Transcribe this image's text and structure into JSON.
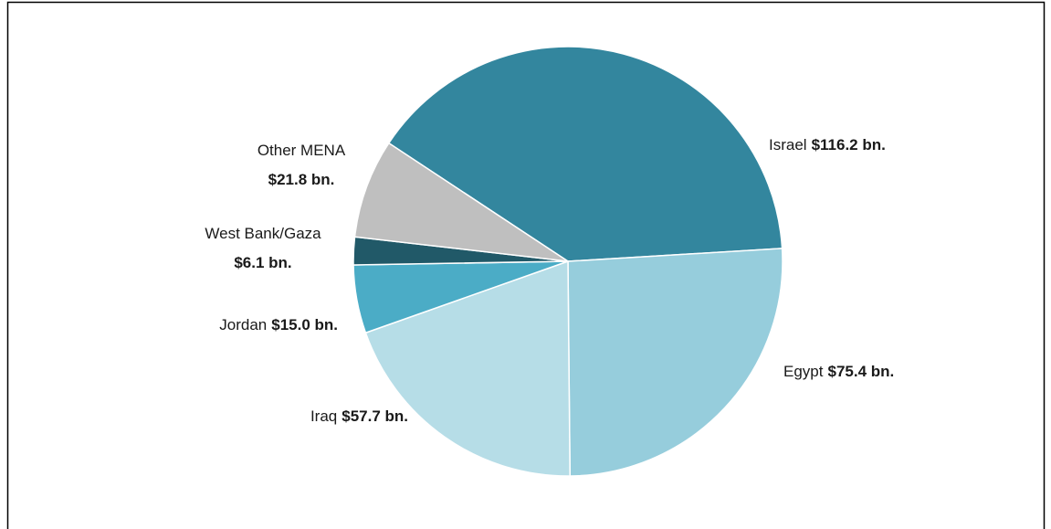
{
  "chart_data": {
    "type": "pie",
    "categories": [
      "Israel",
      "Egypt",
      "Iraq",
      "Jordan",
      "West Bank/Gaza",
      "Other MENA"
    ],
    "values": [
      116.2,
      75.4,
      57.7,
      15.0,
      6.1,
      21.8
    ],
    "value_labels": [
      "$116.2 bn.",
      "$75.4 bn.",
      "$57.7 bn.",
      "$15.0 bn.",
      "$6.1 bn.",
      "$21.8 bn."
    ],
    "colors": [
      "#33869e",
      "#96cddc",
      "#b6dde7",
      "#4bacc6",
      "#215968",
      "#bfbfbf"
    ]
  }
}
